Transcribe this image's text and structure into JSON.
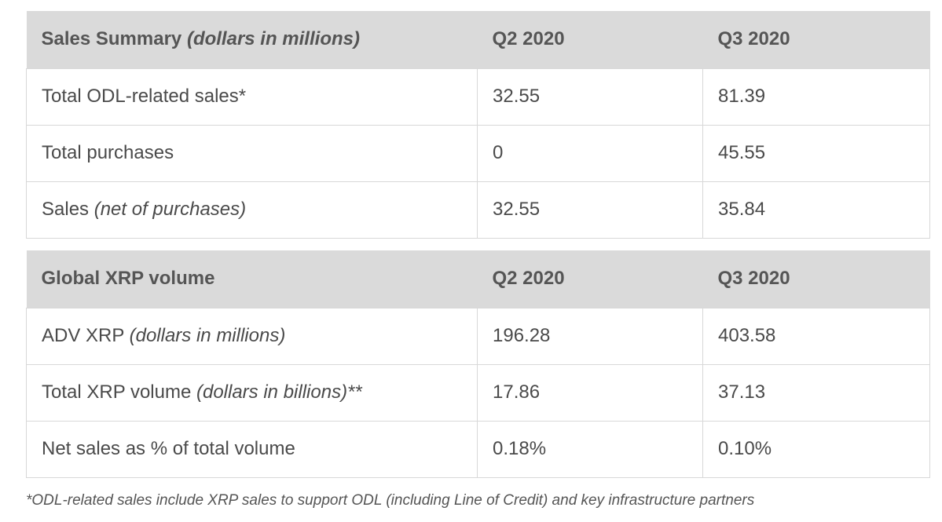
{
  "sales_summary": {
    "header": {
      "label": "Sales Summary",
      "label_note": "(dollars in millions)",
      "col_q2": "Q2 2020",
      "col_q3": "Q3 2020"
    },
    "rows": [
      {
        "label": "Total ODL-related sales*",
        "note": "",
        "q2": "32.55",
        "q3": "81.39"
      },
      {
        "label": "Total purchases",
        "note": "",
        "q2": "0",
        "q3": "45.55"
      },
      {
        "label": "Sales",
        "note": "(net of purchases)",
        "q2": "32.55",
        "q3": "35.84"
      }
    ]
  },
  "xrp_volume": {
    "header": {
      "label": "Global XRP volume",
      "col_q2": "Q2 2020",
      "col_q3": "Q3 2020"
    },
    "rows": [
      {
        "label": "ADV XRP",
        "note": "(dollars in millions)",
        "q2": "196.28",
        "q3": "403.58"
      },
      {
        "label": "Total XRP volume",
        "note": "(dollars in billions)**",
        "q2": "17.86",
        "q3": "37.13"
      },
      {
        "label": "Net sales as % of total volume",
        "note": "",
        "q2": "0.18%",
        "q3": "0.10%"
      }
    ]
  },
  "footnote": "*ODL-related sales include XRP sales to support ODL (including Line of Credit) and key infrastructure partners",
  "colors": {
    "header_bg": "#dadada",
    "border": "#d8d8d8",
    "text": "#4a4a4a"
  }
}
